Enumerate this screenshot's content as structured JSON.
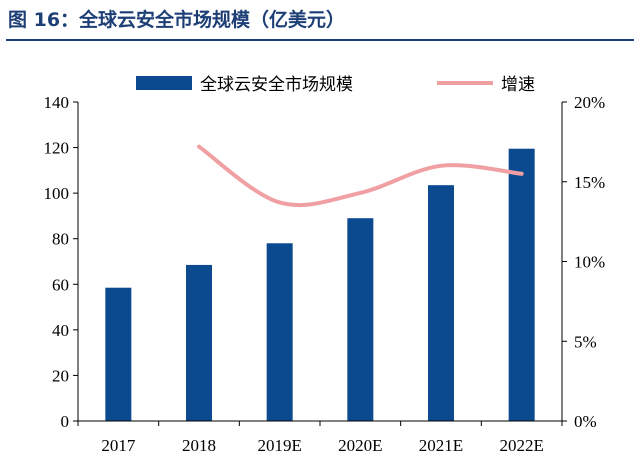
{
  "figure": {
    "title": "图 16：全球云安全市场规模（亿美元）"
  },
  "chart_data": {
    "type": "bar",
    "categories": [
      "2017",
      "2018",
      "2019E",
      "2020E",
      "2021E",
      "2022E"
    ],
    "series": [
      {
        "name": "全球云安全市场规模",
        "type": "bar",
        "axis": "left",
        "values": [
          58.5,
          68.5,
          78.0,
          89.0,
          103.5,
          119.5
        ]
      },
      {
        "name": "增速",
        "type": "line",
        "axis": "right",
        "values": [
          null,
          0.172,
          0.137,
          0.143,
          0.16,
          0.155
        ]
      }
    ],
    "yleft": {
      "lim": [
        0,
        140
      ],
      "ticks": [
        0,
        20,
        40,
        60,
        80,
        100,
        120,
        140
      ]
    },
    "yright": {
      "lim": [
        0,
        0.2
      ],
      "ticks": [
        0,
        0.05,
        0.1,
        0.15,
        0.2
      ],
      "tick_labels": [
        "0%",
        "5%",
        "10%",
        "15%",
        "20%"
      ]
    },
    "legend": "top",
    "grid": false,
    "colors": {
      "bar": "#0b4a8f",
      "line": "#f0a0a2",
      "title": "#1d3f76"
    }
  }
}
